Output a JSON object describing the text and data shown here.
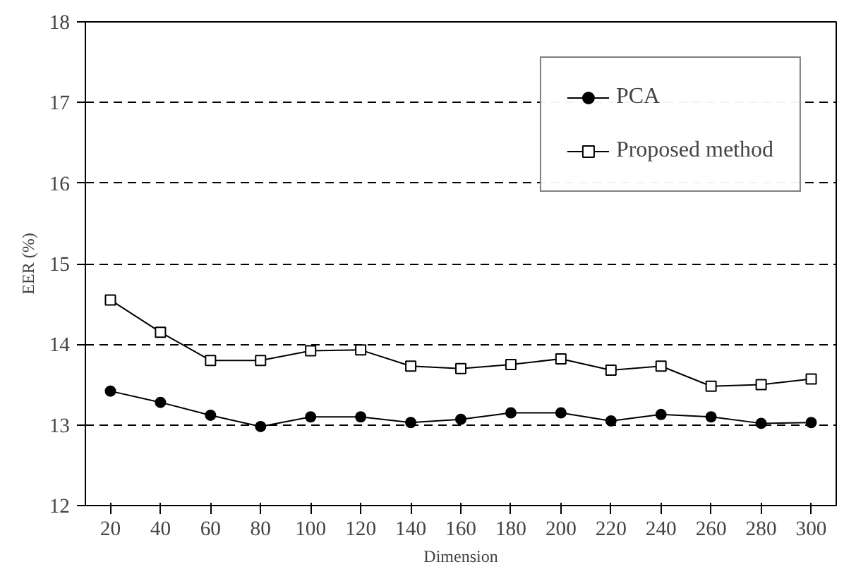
{
  "chart_data": {
    "type": "line",
    "xlabel": "Dimension",
    "ylabel": "EER (%)",
    "categories": [
      "20",
      "40",
      "60",
      "80",
      "100",
      "120",
      "140",
      "160",
      "180",
      "200",
      "220",
      "240",
      "260",
      "280",
      "300"
    ],
    "ylim": [
      12,
      18
    ],
    "yticks": [
      12,
      13,
      14,
      15,
      16,
      17,
      18
    ],
    "grid": "y",
    "legend": "top right",
    "line_style": "solid",
    "series": [
      {
        "name": "PCA",
        "color": "#000000",
        "marker": "circle",
        "values": [
          13.42,
          13.28,
          13.12,
          12.98,
          13.1,
          13.1,
          13.03,
          13.07,
          13.15,
          13.15,
          13.05,
          13.13,
          13.1,
          13.02,
          13.03
        ]
      },
      {
        "name": "Proposed method",
        "color": "#000000",
        "marker": "square",
        "values": [
          14.55,
          14.15,
          13.8,
          13.8,
          13.92,
          13.93,
          13.73,
          13.7,
          13.75,
          13.82,
          13.68,
          13.73,
          13.48,
          13.5,
          13.57
        ]
      }
    ]
  }
}
